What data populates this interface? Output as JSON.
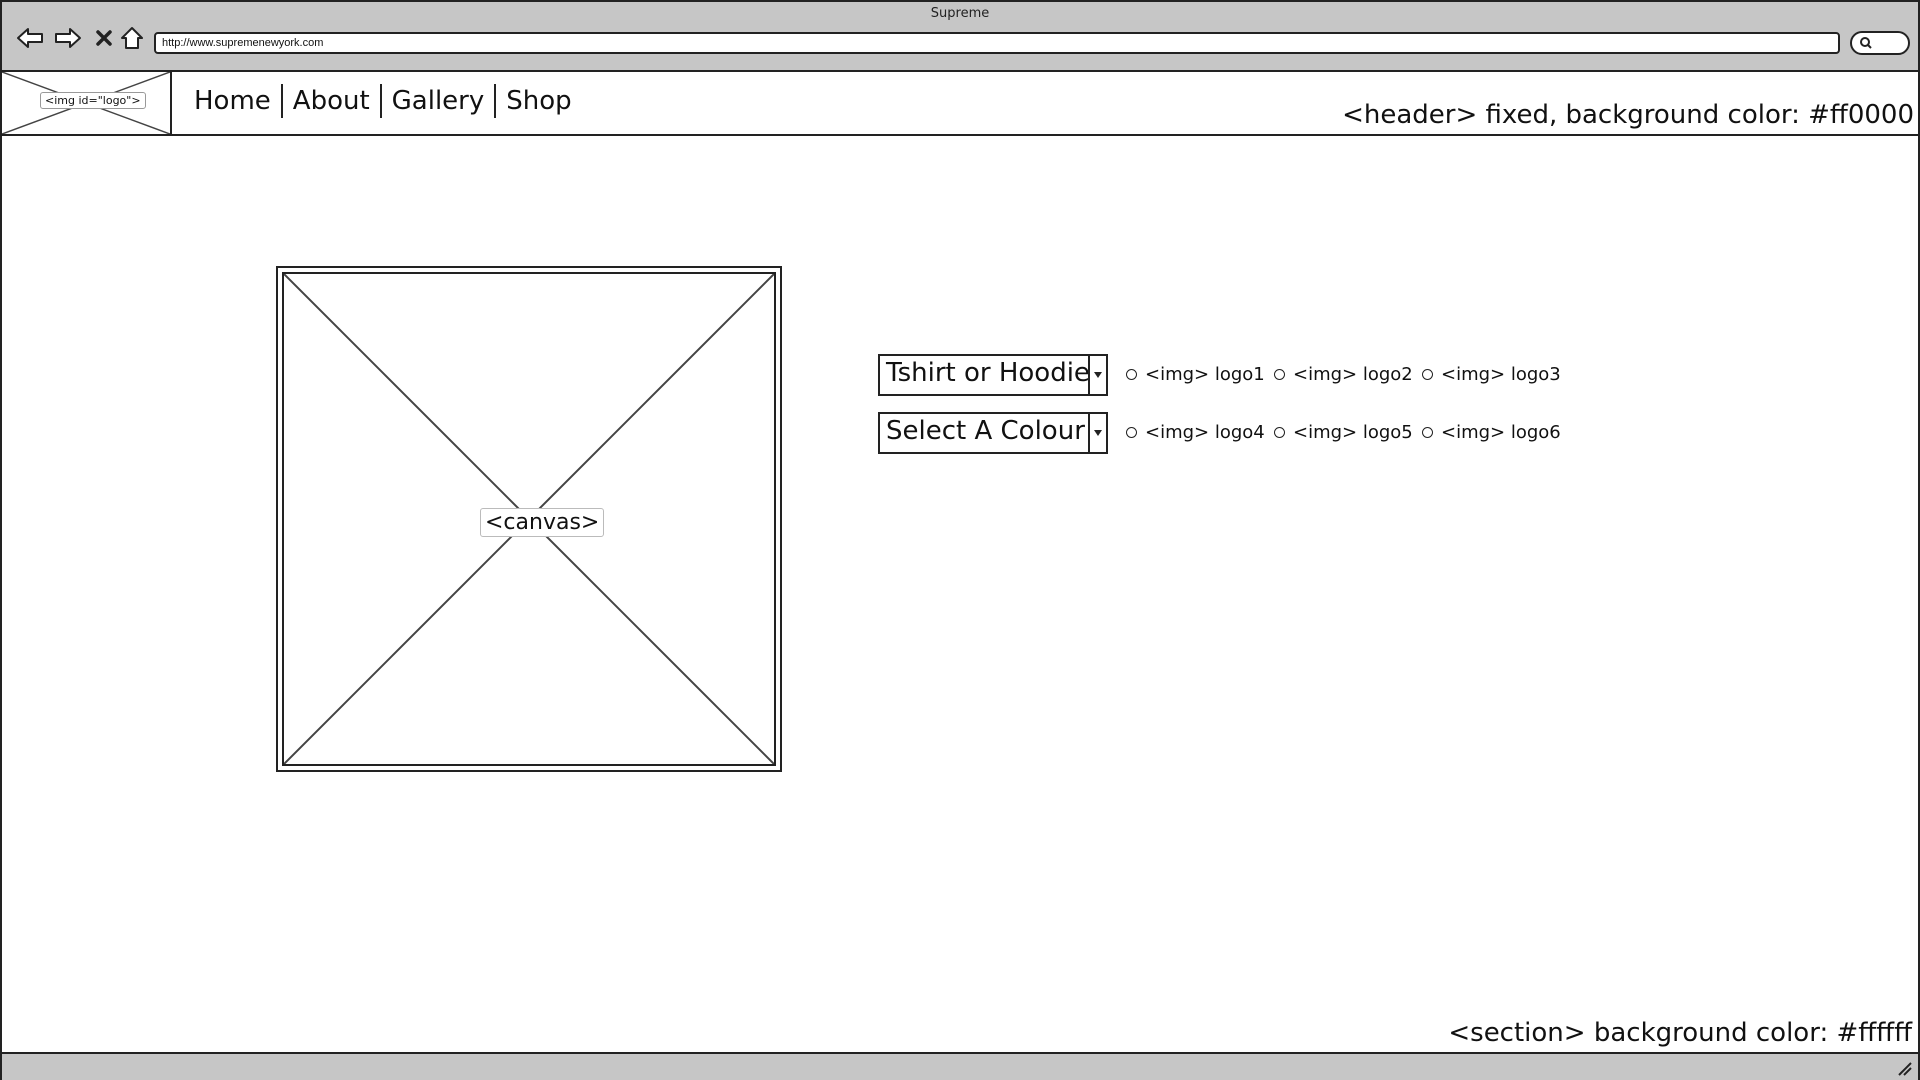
{
  "window": {
    "title": "Supreme"
  },
  "browser": {
    "url": "http://www.supremenewyork.com",
    "icons": [
      "back-arrow-icon",
      "forward-arrow-icon",
      "close-icon",
      "home-icon",
      "search-icon"
    ]
  },
  "header": {
    "logo_label": "<img id=\"logo\">",
    "nav": [
      "Home",
      "About",
      "Gallery",
      "Shop"
    ],
    "note": "<header> fixed, background color: #ff0000"
  },
  "main": {
    "canvas_label": "<canvas>",
    "dropdowns": [
      "Tshirt or Hoodie",
      "Select A Colour"
    ],
    "radios_row1": [
      "<img> logo1",
      "<img> logo2",
      "<img> logo3"
    ],
    "radios_row2": [
      "<img> logo4",
      "<img> logo5",
      "<img> logo6"
    ]
  },
  "section": {
    "note": "<section> background color: #ffffff"
  }
}
